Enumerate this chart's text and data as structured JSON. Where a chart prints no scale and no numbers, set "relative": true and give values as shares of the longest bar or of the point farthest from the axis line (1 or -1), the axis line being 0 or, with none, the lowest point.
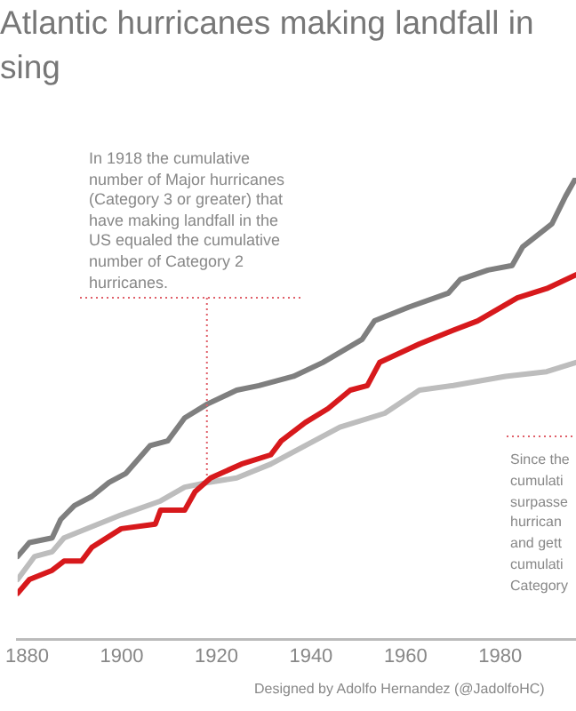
{
  "chart_data": {
    "type": "line",
    "title": "Atlantic hurricanes making landfall in\nsing",
    "relative": true,
    "xlim": [
      1878,
      1996
    ],
    "xticks": [
      1880,
      1900,
      1920,
      1940,
      1960,
      1980
    ],
    "grid": false,
    "legend": false,
    "marker": "none",
    "line_style": "solid",
    "annotations": [
      {
        "text": "In 1918 the cumulative\nnumber of Major hurricanes\n(Category 3 or greater) that\nhave making landfall in the\nUS equaled the cumulative\nnumber of Category 2\nhurricanes.",
        "x": 1918,
        "y": 0.35
      },
      "Since the\ncumulati\nsurpasse\nhurrican\nand gett\ncumulati\nCategory",
      "Designed by Adolfo Hernandez (@JadolfoHC)"
    ],
    "series": [
      {
        "color": "#7f7f7f",
        "x": [
          1878,
          1880.5,
          1885.3,
          1887.1,
          1890,
          1893.7,
          1897.3,
          1900.9,
          1906,
          1909.7,
          1913.3,
          1918.1,
          1924.3,
          1929,
          1936.3,
          1942.5,
          1950.8,
          1953.4,
          1960.7,
          1969,
          1971.6,
          1977.4,
          1982.5,
          1984.7,
          1988.4,
          1990.9,
          1993.8,
          1996
        ],
        "values": [
          0.18,
          0.21,
          0.22,
          0.26,
          0.29,
          0.31,
          0.34,
          0.36,
          0.42,
          0.43,
          0.48,
          0.51,
          0.54,
          0.55,
          0.57,
          0.6,
          0.65,
          0.69,
          0.72,
          0.75,
          0.78,
          0.8,
          0.81,
          0.85,
          0.88,
          0.9,
          0.96,
          1
        ]
      },
      {
        "color": "#d7191c",
        "x": [
          1878,
          1880.5,
          1885.3,
          1887.8,
          1891.5,
          1893.7,
          1899.9,
          1907.1,
          1908.2,
          1913.3,
          1915.5,
          1918.8,
          1925.3,
          1931.5,
          1933.7,
          1938.8,
          1943.6,
          1948.3,
          1951.9,
          1954.5,
          1962.9,
          1970.1,
          1975.2,
          1983.6,
          1989.8,
          1996
        ],
        "values": [
          0.1,
          0.13,
          0.15,
          0.17,
          0.17,
          0.2,
          0.24,
          0.25,
          0.28,
          0.28,
          0.32,
          0.35,
          0.38,
          0.4,
          0.43,
          0.47,
          0.5,
          0.54,
          0.55,
          0.6,
          0.64,
          0.67,
          0.69,
          0.74,
          0.76,
          0.79
        ]
      },
      {
        "color": "#bdbdbd",
        "x": [
          1878,
          1881.6,
          1885.3,
          1887.8,
          1899.9,
          1908.2,
          1913.3,
          1918.1,
          1924.3,
          1931.5,
          1938.8,
          1946.1,
          1955.6,
          1962.9,
          1970.1,
          1981.1,
          1989.8,
          1996
        ],
        "values": [
          0.13,
          0.18,
          0.19,
          0.22,
          0.27,
          0.3,
          0.33,
          0.34,
          0.35,
          0.38,
          0.42,
          0.46,
          0.49,
          0.54,
          0.55,
          0.57,
          0.58,
          0.6
        ]
      }
    ]
  }
}
